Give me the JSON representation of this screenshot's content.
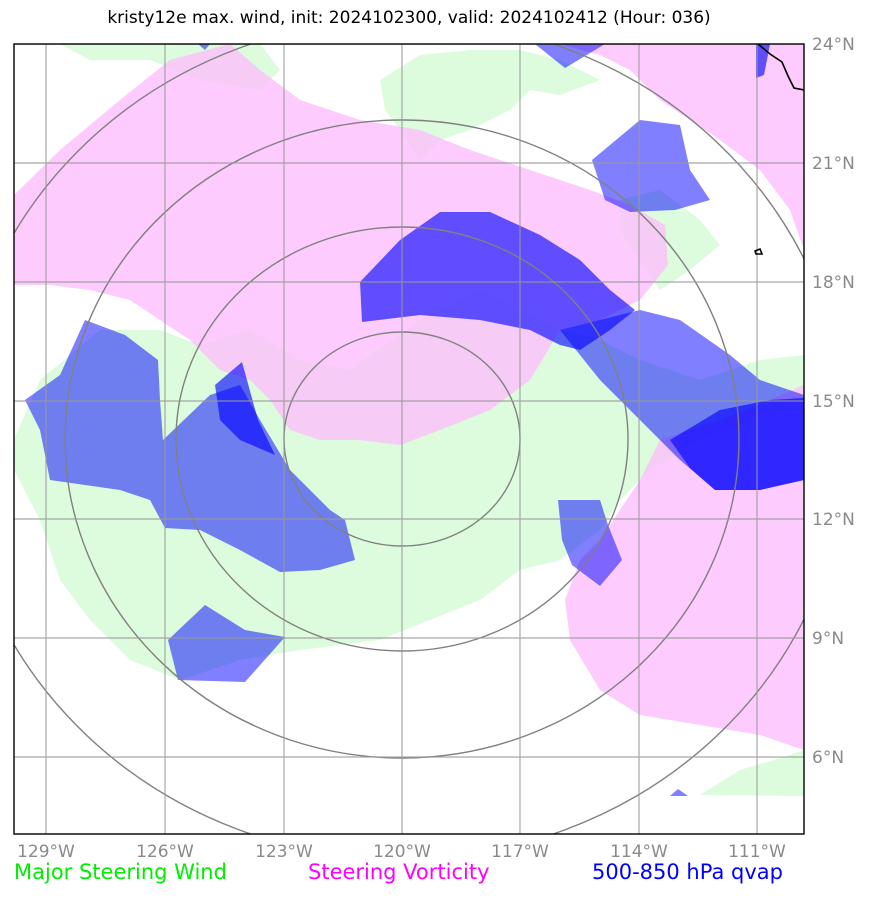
{
  "title": "kristy12e max. wind, init: 2024102300, valid: 2024102412 (Hour: 036)",
  "map": {
    "lon_range": [
      -129.8,
      -109.9
    ],
    "lat_range": [
      4.1,
      24.0
    ],
    "grid": true,
    "longitude_ticks": [
      "129°W",
      "126°W",
      "123°W",
      "120°W",
      "117°W",
      "114°W",
      "111°W"
    ],
    "latitude_ticks": [
      "24°N",
      "21°N",
      "18°N",
      "15°N",
      "12°N",
      "9°N",
      "6°N"
    ],
    "range_rings_center": {
      "lon": -120.0,
      "lat": 14.0
    },
    "colors": {
      "steering_wind": "#ddfcdd",
      "steering_vorticity": "#fdbdfd",
      "qvap": "#0000ff",
      "coastline": "#000000",
      "rings": "#808080"
    }
  },
  "legend": {
    "steering_wind": "Major Steering Wind",
    "steering_vorticity": "Steering Vorticity",
    "qvap": "500-850 hPa qvap"
  }
}
